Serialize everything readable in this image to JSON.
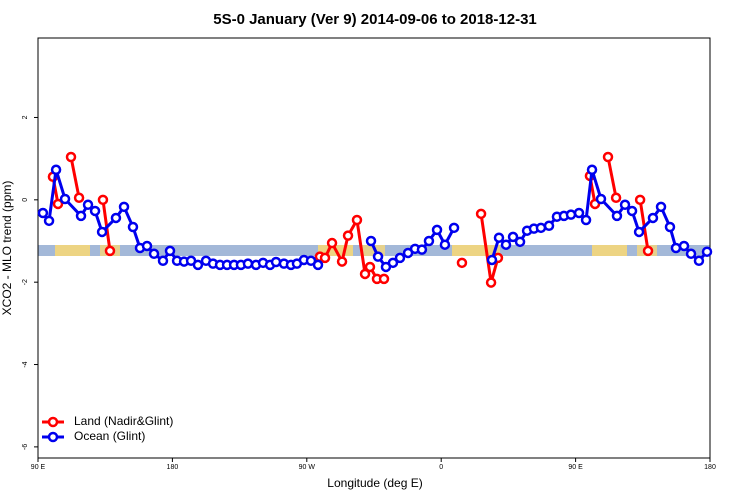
{
  "chart_data": {
    "type": "line",
    "title": "5S-0 January (Ver 9)   2014-09-06 to 2018-12-31",
    "x_label": "Longitude (deg E)",
    "y_label": "XCO2 - MLO trend (ppm)",
    "xlim": [
      90,
      540
    ],
    "xticks": [
      {
        "value": 90,
        "label": "90 E"
      },
      180,
      {
        "value": 270,
        "label": "90 W"
      },
      {
        "value": 360,
        "label": "0"
      },
      {
        "value": 450,
        "label": "90 E"
      },
      {
        "value": 540,
        "label": "180"
      }
    ],
    "ylim": [
      -6.27,
      3.93
    ],
    "yticks": [
      -6,
      -4,
      -2,
      0,
      2
    ],
    "legend": "bottom-left",
    "series": [
      {
        "name": "Land (Nadir&Glint)",
        "color": "#ff0000",
        "x": [
          100.0,
          103.4,
          null,
          112.1,
          117.5,
          null,
          133.5,
          138.2,
          null,
          278.8,
          282.2,
          286.9,
          293.6,
          297.6,
          303.6,
          309.0,
          312.3,
          317.0,
          321.7,
          null,
          373.9,
          null,
          386.7,
          393.4,
          398.0,
          null,
          459.6,
          463.0,
          null,
          471.7,
          477.1,
          null,
          493.2,
          498.5
        ],
        "values": [
          0.56,
          -0.1,
          null,
          1.04,
          0.05,
          null,
          0.0,
          -1.24,
          null,
          -1.38,
          -1.41,
          -1.05,
          -1.5,
          -0.87,
          -0.49,
          -1.8,
          -1.63,
          -1.92,
          -1.92,
          null,
          -1.53,
          null,
          -0.34,
          -2.01,
          -1.41,
          null,
          0.58,
          -0.1,
          null,
          1.04,
          0.05,
          null,
          0.0,
          -1.24
        ]
      },
      {
        "name": "Ocean (Glint)",
        "color": "#0000ee",
        "x": [
          93.3,
          97.4,
          102.1,
          108.1,
          118.8,
          123.5,
          128.2,
          132.9,
          142.2,
          147.6,
          153.6,
          158.3,
          163.0,
          167.7,
          173.7,
          178.4,
          183.1,
          187.8,
          192.5,
          197.1,
          202.5,
          207.2,
          211.9,
          216.6,
          221.3,
          225.9,
          230.6,
          236.0,
          240.7,
          245.4,
          249.4,
          254.7,
          259.4,
          263.4,
          268.1,
          272.8,
          277.5,
          null,
          313.0,
          317.7,
          323.0,
          327.7,
          332.4,
          337.8,
          342.5,
          347.1,
          351.8,
          357.2,
          362.5,
          368.6,
          null,
          394.0,
          398.7,
          403.4,
          408.1,
          412.8,
          417.5,
          422.1,
          426.8,
          432.2,
          437.5,
          442.2,
          446.9,
          452.3,
          457.0,
          461.0,
          467.0,
          477.7,
          483.1,
          487.8,
          492.5,
          501.8,
          507.2,
          513.2,
          517.2,
          522.6,
          527.3,
          532.6,
          538.0
        ],
        "values": [
          -0.32,
          -0.51,
          0.73,
          0.02,
          -0.39,
          -0.12,
          -0.27,
          -0.78,
          -0.44,
          -0.17,
          -0.66,
          -1.17,
          -1.12,
          -1.31,
          -1.48,
          -1.24,
          -1.48,
          -1.5,
          -1.48,
          -1.58,
          -1.48,
          -1.55,
          -1.58,
          -1.58,
          -1.58,
          -1.58,
          -1.55,
          -1.58,
          -1.53,
          -1.58,
          -1.51,
          -1.55,
          -1.58,
          -1.55,
          -1.46,
          -1.48,
          -1.58,
          null,
          -1.0,
          -1.38,
          -1.63,
          -1.53,
          -1.41,
          -1.29,
          -1.19,
          -1.21,
          -1.0,
          -0.73,
          -1.09,
          -0.68,
          null,
          -1.46,
          -0.92,
          -1.09,
          -0.9,
          -1.02,
          -0.75,
          -0.7,
          -0.68,
          -0.63,
          -0.41,
          -0.39,
          -0.36,
          -0.32,
          -0.49,
          0.73,
          0.02,
          -0.39,
          -0.12,
          -0.27,
          -0.78,
          -0.44,
          -0.17,
          -0.66,
          -1.17,
          -1.12,
          -1.31,
          -1.48,
          -1.26
        ]
      }
    ]
  }
}
